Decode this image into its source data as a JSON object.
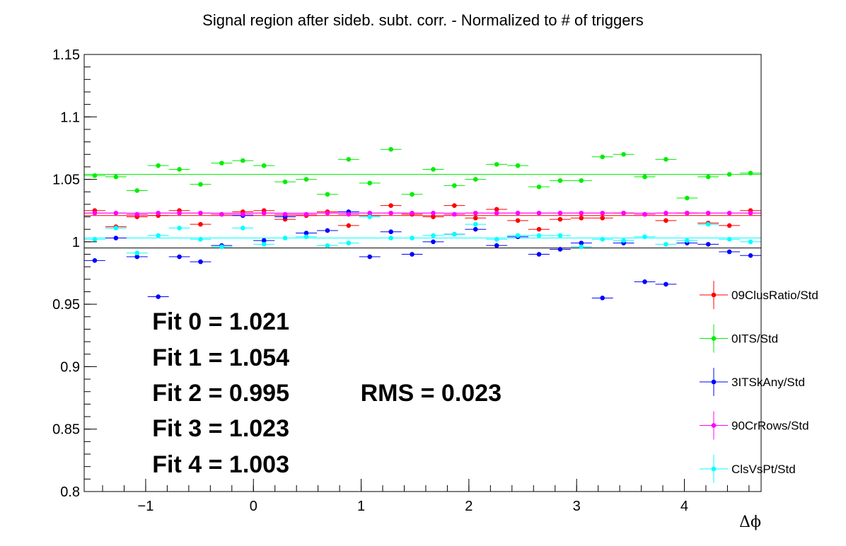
{
  "chart_data": {
    "type": "scatter",
    "title": "Signal region after sideb. subt. corr. - Normalized to # of triggers",
    "xlabel": "Δϕ",
    "ylabel": "",
    "xlim": [
      -1.5708,
      4.7124
    ],
    "ylim": [
      0.8,
      1.15
    ],
    "x_ticks": [
      -1,
      0,
      1,
      2,
      3,
      4
    ],
    "x_tick_labels": [
      "−1",
      "0",
      "1",
      "2",
      "3",
      "4"
    ],
    "y_ticks": [
      0.8,
      0.85,
      0.9,
      0.95,
      1.0,
      1.05,
      1.1,
      1.15
    ],
    "y_tick_labels": [
      "0.8",
      "0.85",
      "0.9",
      "0.95",
      "1",
      "1.05",
      "1.1",
      "1.15"
    ],
    "bin_width": 0.19635,
    "x": [
      -1.4726,
      -1.2763,
      -1.0799,
      -0.8836,
      -0.6872,
      -0.4909,
      -0.2945,
      -0.0982,
      0.0982,
      0.2945,
      0.4909,
      0.6872,
      0.8836,
      1.0799,
      1.2763,
      1.4726,
      1.669,
      1.8653,
      2.0617,
      2.258,
      2.4544,
      2.6507,
      2.8471,
      3.0434,
      3.2398,
      3.4361,
      3.6325,
      3.8288,
      4.0252,
      4.2215,
      4.4179,
      4.6142
    ],
    "series": [
      {
        "name": "09ClusRatio/Std",
        "color": "#ff0000",
        "values": [
          1.025,
          1.012,
          1.02,
          1.021,
          1.025,
          1.014,
          1.022,
          1.024,
          1.025,
          1.018,
          1.021,
          1.024,
          1.013,
          1.021,
          1.029,
          1.022,
          1.02,
          1.029,
          1.019,
          1.026,
          1.017,
          1.01,
          1.018,
          1.019,
          1.019,
          1.023,
          1.022,
          1.017,
          1.023,
          1.015,
          1.013,
          1.025
        ],
        "fit": 1.021
      },
      {
        "name": "0ITS/Std",
        "color": "#00ee00",
        "values": [
          1.053,
          1.052,
          1.041,
          1.061,
          1.058,
          1.046,
          1.063,
          1.065,
          1.061,
          1.048,
          1.05,
          1.038,
          1.066,
          1.047,
          1.074,
          1.038,
          1.058,
          1.045,
          1.05,
          1.062,
          1.061,
          1.044,
          1.049,
          1.049,
          1.068,
          1.07,
          1.052,
          1.066,
          1.035,
          1.052,
          1.054,
          1.055
        ],
        "fit": 1.054
      },
      {
        "name": "3ITSkAny/Std",
        "color": "#0000ff",
        "values": [
          0.985,
          1.003,
          0.988,
          0.956,
          0.988,
          0.984,
          0.997,
          1.021,
          1.001,
          1.02,
          1.007,
          1.009,
          1.024,
          0.988,
          1.008,
          0.99,
          1.0,
          1.006,
          1.01,
          0.997,
          1.004,
          0.99,
          0.994,
          0.999,
          0.955,
          0.999,
          0.968,
          0.966,
          0.999,
          0.998,
          0.992,
          0.989
        ],
        "fit": 0.995
      },
      {
        "name": "90CrRows/Std",
        "color": "#ff00ff",
        "values": [
          1.023,
          1.023,
          1.022,
          1.023,
          1.023,
          1.023,
          1.022,
          1.022,
          1.023,
          1.022,
          1.022,
          1.023,
          1.022,
          1.023,
          1.023,
          1.023,
          1.023,
          1.022,
          1.023,
          1.023,
          1.023,
          1.023,
          1.023,
          1.023,
          1.023,
          1.023,
          1.022,
          1.023,
          1.023,
          1.023,
          1.023,
          1.023
        ],
        "fit": 1.023
      },
      {
        "name": "ClsVsPt/Std",
        "color": "#00ffff",
        "values": [
          1.002,
          1.011,
          0.991,
          1.005,
          1.011,
          1.002,
          0.996,
          1.011,
          0.998,
          1.003,
          1.004,
          0.997,
          0.999,
          1.02,
          1.003,
          1.003,
          1.005,
          1.006,
          1.014,
          1.002,
          1.005,
          1.005,
          1.005,
          0.996,
          1.002,
          1.001,
          1.004,
          0.998,
          1.001,
          1.014,
          1.002,
          1.0
        ],
        "fit": 1.003
      }
    ],
    "fit_line_color": "#000000",
    "annotations": [
      "Fit 0 = 1.021",
      "Fit 1 = 1.054",
      "Fit 2 = 0.995",
      "Fit 3 = 1.023",
      "Fit 4 = 1.003",
      "RMS = 0.023"
    ],
    "grid": false,
    "legend_position": "right"
  }
}
